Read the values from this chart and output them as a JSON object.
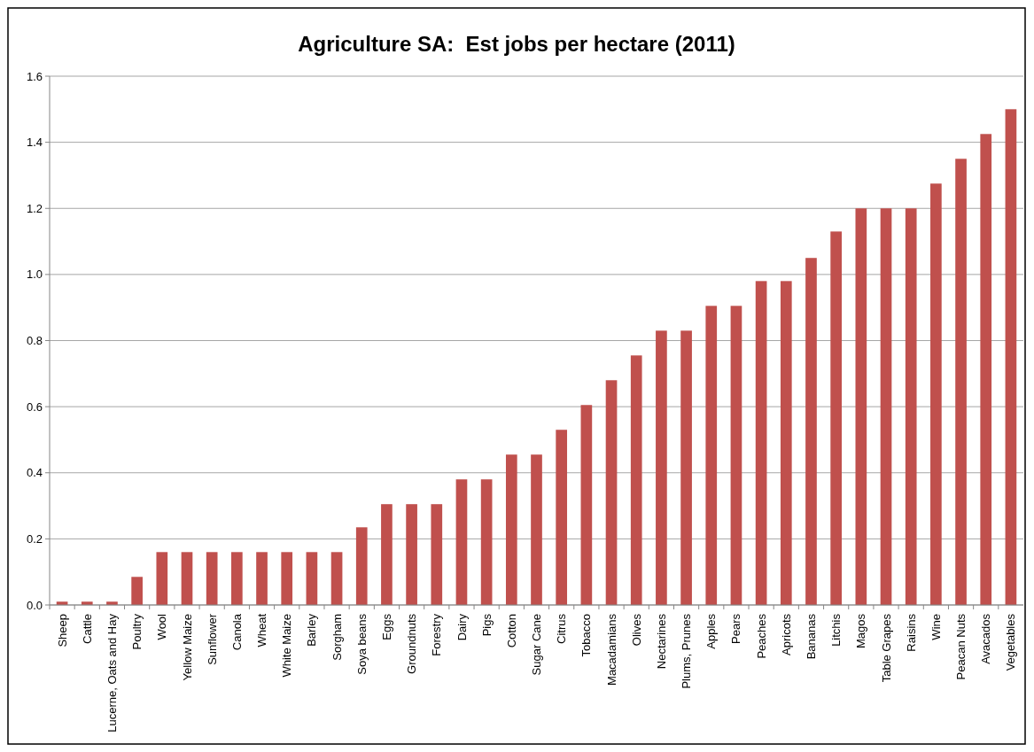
{
  "chart_data": {
    "type": "bar",
    "title": "Agriculture SA:  Est jobs per hectare (2011)",
    "categories": [
      "Sheep",
      "Cattle",
      "Lucerne, Oats and Hay",
      "Poultry",
      "Wool",
      "Yellow Maize",
      "Sunflower",
      "Canola",
      "Wheat",
      "White Maize",
      "Barley",
      "Sorgham",
      "Soya beans",
      "Eggs",
      "Groundnuts",
      "Forestry",
      "Dairy",
      "Pigs",
      "Cotton",
      "Sugar Cane",
      "Citrus",
      "Tobacco",
      "Macadamians",
      "Olives",
      "Nectarines",
      "Plums, Prunes",
      "Apples",
      "Pears",
      "Peaches",
      "Apricots",
      "Bananas",
      "Litchis",
      "Magos",
      "Table Grapes",
      "Raisins",
      "Wine",
      "Peacan Nuts",
      "Avacados",
      "Vegetables"
    ],
    "values": [
      0.01,
      0.01,
      0.01,
      0.085,
      0.16,
      0.16,
      0.16,
      0.16,
      0.16,
      0.16,
      0.16,
      0.16,
      0.235,
      0.305,
      0.305,
      0.305,
      0.38,
      0.38,
      0.455,
      0.455,
      0.53,
      0.605,
      0.68,
      0.755,
      0.83,
      0.83,
      0.905,
      0.905,
      0.98,
      0.98,
      1.05,
      1.13,
      1.2,
      1.2,
      1.2,
      1.275,
      1.35,
      1.425,
      1.5
    ],
    "color": "#c0504d",
    "ylim": [
      0,
      1.6
    ],
    "yticks": [
      {
        "value": 0,
        "label": "0.0"
      },
      {
        "value": 0.2,
        "label": "0.2"
      },
      {
        "value": 0.4,
        "label": "0.4"
      },
      {
        "value": 0.6,
        "label": "0.6"
      },
      {
        "value": 0.8,
        "label": "0.8"
      },
      {
        "value": 1,
        "label": "1.0"
      },
      {
        "value": 1.2,
        "label": "1.2"
      },
      {
        "value": 1.4,
        "label": "1.4"
      },
      {
        "value": 1.6,
        "label": "1.6"
      }
    ],
    "grid": "y"
  }
}
